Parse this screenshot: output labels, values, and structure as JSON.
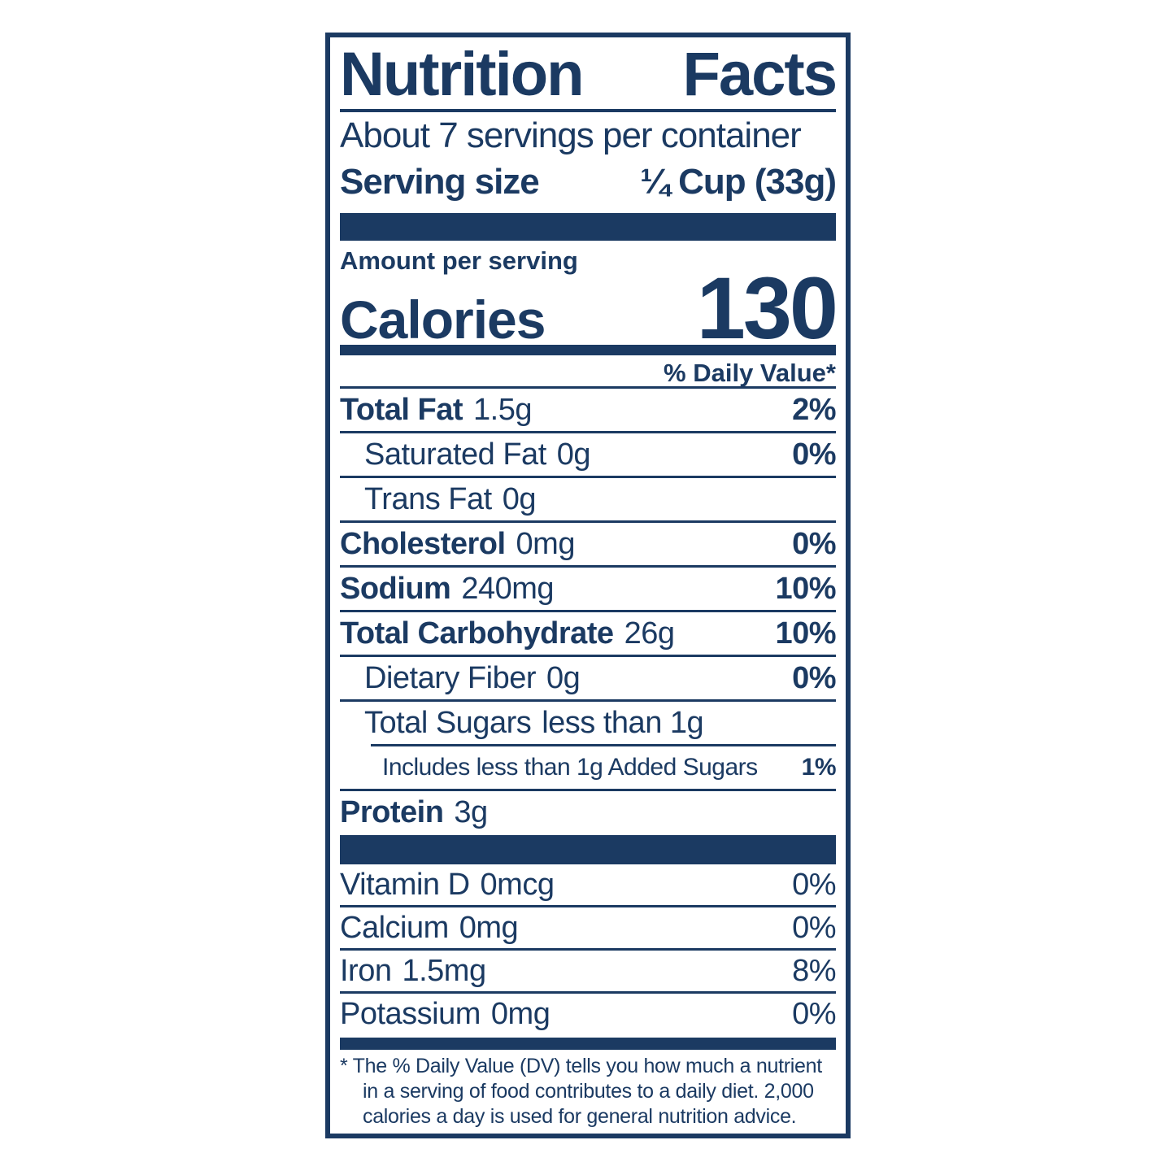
{
  "colors": {
    "navy": "#1b3a62",
    "background": "#ffffff"
  },
  "label": {
    "title_word_1": "Nutrition",
    "title_word_2": "Facts",
    "servings_per_container": "About 7 servings per container",
    "serving_size": {
      "label": "Serving size",
      "value": "¼ Cup (33g)"
    },
    "amount_per_serving": "Amount per serving",
    "calories": {
      "label": "Calories",
      "value": "130"
    },
    "daily_value_header": "% Daily Value*",
    "nutrients": [
      {
        "name": "Total Fat",
        "amount": "1.5g",
        "dv": "2%"
      },
      {
        "name": "Saturated Fat",
        "amount": "0g",
        "dv": "0%"
      },
      {
        "name": "Trans Fat",
        "amount": "0g",
        "dv": ""
      },
      {
        "name": "Cholesterol",
        "amount": "0mg",
        "dv": "0%"
      },
      {
        "name": "Sodium",
        "amount": "240mg",
        "dv": "10%"
      },
      {
        "name": "Total Carbohydrate",
        "amount": "26g",
        "dv": "10%"
      },
      {
        "name": "Dietary Fiber",
        "amount": "0g",
        "dv": "0%"
      },
      {
        "name": "Total Sugars",
        "amount": "less than 1g",
        "dv": ""
      },
      {
        "name": "Includes less than 1g Added Sugars",
        "amount": "",
        "dv": "1%"
      },
      {
        "name": "Protein",
        "amount": "3g",
        "dv": ""
      }
    ],
    "micronutrients": [
      {
        "name": "Vitamin D",
        "amount": "0mcg",
        "dv": "0%"
      },
      {
        "name": "Calcium",
        "amount": "0mg",
        "dv": "0%"
      },
      {
        "name": "Iron",
        "amount": "1.5mg",
        "dv": "8%"
      },
      {
        "name": "Potassium",
        "amount": "0mg",
        "dv": "0%"
      }
    ],
    "footnote_lines": [
      "* The % Daily Value (DV) tells you how much a nutrient",
      "in a serving of food contributes to a daily diet. 2,000",
      "calories a day is used for general nutrition advice."
    ]
  }
}
